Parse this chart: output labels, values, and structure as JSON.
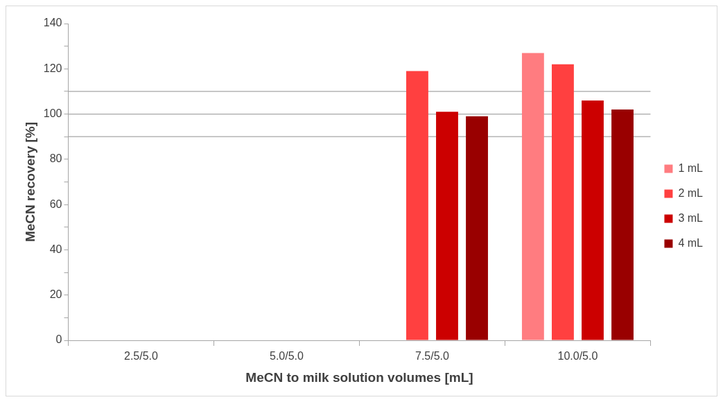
{
  "chart_data": {
    "type": "bar",
    "xlabel": "MeCN to milk solution volumes [mL]",
    "ylabel": "MeCN recovery [%]",
    "categories": [
      "2.5/5.0",
      "5.0/5.0",
      "7.5/5.0",
      "10.0/5.0"
    ],
    "series": [
      {
        "name": "1 mL",
        "color": "#ff7c80",
        "values": [
          null,
          null,
          null,
          127
        ]
      },
      {
        "name": "2 mL",
        "color": "#ff4040",
        "values": [
          null,
          null,
          119,
          122
        ]
      },
      {
        "name": "3 mL",
        "color": "#cc0000",
        "values": [
          null,
          null,
          101,
          106
        ]
      },
      {
        "name": "4 mL",
        "color": "#990000",
        "values": [
          null,
          null,
          99,
          102
        ]
      }
    ],
    "ylim": [
      0,
      140
    ],
    "yticks": [
      0,
      {
        "value": 10,
        "label": null
      },
      20,
      {
        "value": 30,
        "label": null
      },
      40,
      {
        "value": 50,
        "label": null
      },
      60,
      {
        "value": 70,
        "label": null
      },
      80,
      {
        "value": 90,
        "label": null
      },
      100,
      {
        "value": 110,
        "label": null
      },
      120,
      {
        "value": 130,
        "label": null
      },
      140
    ],
    "ref_lines": [
      {
        "axis": "y",
        "value": 90,
        "color": "#a6a6a6"
      },
      {
        "axis": "y",
        "value": 100,
        "color": "#a6a6a6"
      },
      {
        "axis": "y",
        "value": 110,
        "color": "#a6a6a6"
      }
    ],
    "grid": false,
    "legend": "right"
  }
}
